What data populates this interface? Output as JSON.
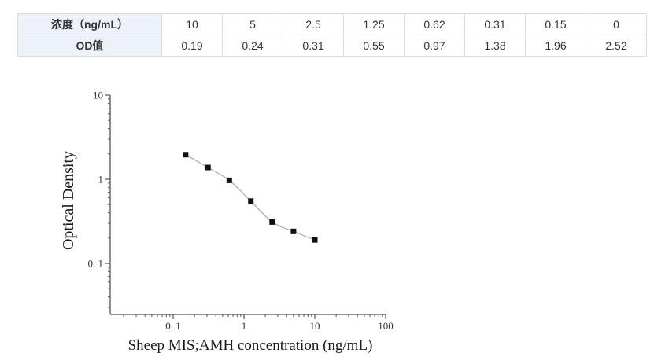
{
  "page": {
    "background": "#ffffff"
  },
  "table": {
    "header_bg": "#edf2fa",
    "border_color": "#d9dde3",
    "text_color": "#333333",
    "rows": [
      {
        "header": "浓度（ng/mL）",
        "values": [
          "10",
          "5",
          "2.5",
          "1.25",
          "0.62",
          "0.31",
          "0.15",
          "0"
        ]
      },
      {
        "header": "OD值",
        "values": [
          "0.19",
          "0.24",
          "0.31",
          "0.55",
          "0.97",
          "1.38",
          "1.96",
          "2.52"
        ]
      }
    ]
  },
  "chart_data": {
    "type": "scatter",
    "x_scale": "log",
    "y_scale": "log",
    "x": [
      0.15,
      0.31,
      0.62,
      1.25,
      2.5,
      5,
      10
    ],
    "y": [
      1.96,
      1.38,
      0.97,
      0.55,
      0.31,
      0.24,
      0.19
    ],
    "xlabel": "Sheep MIS;AMH concentration (ng/mL)",
    "ylabel": "Optical Density",
    "x_ticks": [
      0.1,
      1,
      10,
      100
    ],
    "x_tick_labels": [
      "0. 1",
      "1",
      "10",
      "100"
    ],
    "y_ticks": [
      10,
      1,
      0.1
    ],
    "y_tick_labels": [
      "10",
      "1",
      "0. 1"
    ],
    "xlim": [
      0.013,
      100
    ],
    "ylim": [
      0.025,
      10
    ],
    "grid": false,
    "legend": "none",
    "marker": "black-square",
    "marker_color": "#111111",
    "line_color": "#aaaaaa",
    "axis_color": "#555555",
    "tick_text_color": "#333333",
    "title_text_color": "#1a1a1a"
  }
}
